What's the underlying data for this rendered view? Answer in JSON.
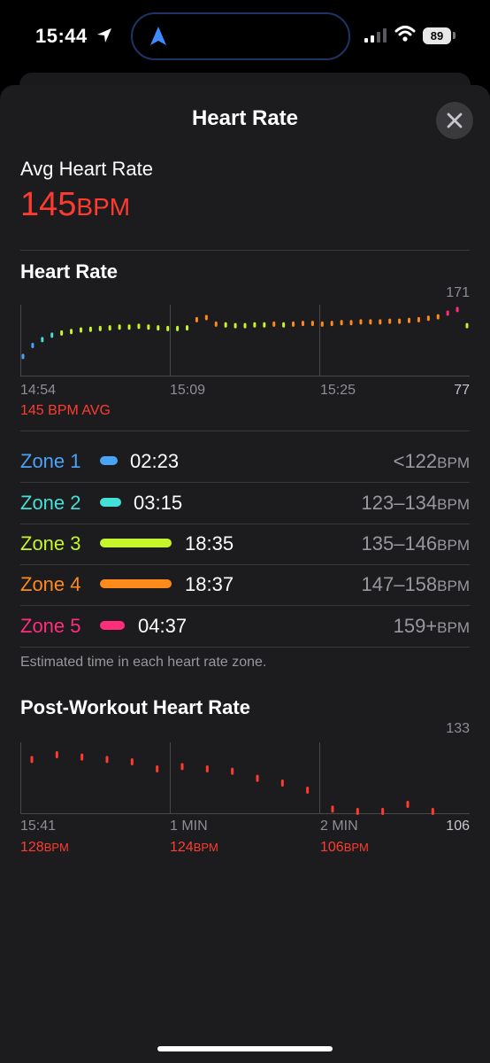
{
  "status_bar": {
    "time": "15:44",
    "battery": "89"
  },
  "sheet": {
    "title": "Heart Rate"
  },
  "summary": {
    "label": "Avg Heart Rate",
    "value": "145",
    "unit": "BPM"
  },
  "hr_chart": {
    "title": "Heart Rate",
    "max_label": "171",
    "min_label": "77",
    "x_labels": [
      "14:54",
      "15:09",
      "15:25"
    ],
    "avg_label": "145 BPM AVG"
  },
  "zones": {
    "rows": [
      {
        "name": "Zone 1",
        "time": "02:23",
        "range": "<122",
        "unit": "BPM",
        "color": "#4aa3f5"
      },
      {
        "name": "Zone 2",
        "time": "03:15",
        "range": "123–134",
        "unit": "BPM",
        "color": "#44e0d8"
      },
      {
        "name": "Zone 3",
        "time": "18:35",
        "range": "135–146",
        "unit": "BPM",
        "color": "#c6f52b"
      },
      {
        "name": "Zone 4",
        "time": "18:37",
        "range": "147–158",
        "unit": "BPM",
        "color": "#ff8a1c"
      },
      {
        "name": "Zone 5",
        "time": "04:37",
        "range": "159+",
        "unit": "BPM",
        "color": "#ff2d7a"
      }
    ],
    "footnote": "Estimated time in each heart rate zone."
  },
  "post_workout": {
    "title": "Post-Workout Heart Rate",
    "max_label": "133",
    "min_label": "106",
    "x_labels": [
      "15:41",
      "1 MIN",
      "2 MIN"
    ],
    "values": [
      {
        "value": "128",
        "unit": "BPM"
      },
      {
        "value": "124",
        "unit": "BPM"
      },
      {
        "value": "106",
        "unit": "BPM"
      }
    ]
  },
  "chart_data": [
    {
      "type": "line",
      "title": "Heart Rate",
      "x_range": [
        "14:54",
        "15:40"
      ],
      "ylim": [
        77,
        171
      ],
      "x_ticks": [
        "14:54",
        "15:09",
        "15:25"
      ],
      "series": [
        {
          "x_minutes": [
            0,
            1,
            2,
            3,
            4,
            5,
            6,
            7,
            8,
            9,
            10,
            11,
            12,
            13,
            14,
            15,
            16,
            17,
            18,
            19,
            20,
            21,
            22,
            23,
            24,
            25,
            26,
            27,
            28,
            29,
            30,
            31,
            32,
            33,
            34,
            35,
            36,
            37,
            38,
            39,
            40,
            41,
            42,
            43,
            44,
            45,
            46
          ],
          "values": [
            103,
            118,
            126,
            132,
            135,
            137,
            139,
            140,
            141,
            142,
            143,
            143,
            144,
            143,
            142,
            141,
            141,
            142,
            153,
            156,
            147,
            146,
            145,
            145,
            146,
            146,
            147,
            146,
            147,
            148,
            148,
            147,
            148,
            149,
            149,
            150,
            150,
            150,
            151,
            151,
            152,
            153,
            155,
            157,
            162,
            167,
            145
          ]
        }
      ]
    },
    {
      "type": "scatter",
      "title": "Post-Workout Heart Rate",
      "x_ticks": [
        "15:41",
        "1 MIN",
        "2 MIN"
      ],
      "ylim": [
        106,
        133
      ],
      "series": [
        {
          "x_seconds": [
            0,
            10,
            20,
            30,
            40,
            50,
            60,
            70,
            80,
            90,
            100,
            110,
            120,
            130,
            140,
            150,
            160
          ],
          "values": [
            128,
            130,
            129,
            128,
            127,
            124,
            125,
            124,
            123,
            120,
            118,
            115,
            107,
            106,
            106,
            109,
            106
          ]
        }
      ]
    }
  ]
}
